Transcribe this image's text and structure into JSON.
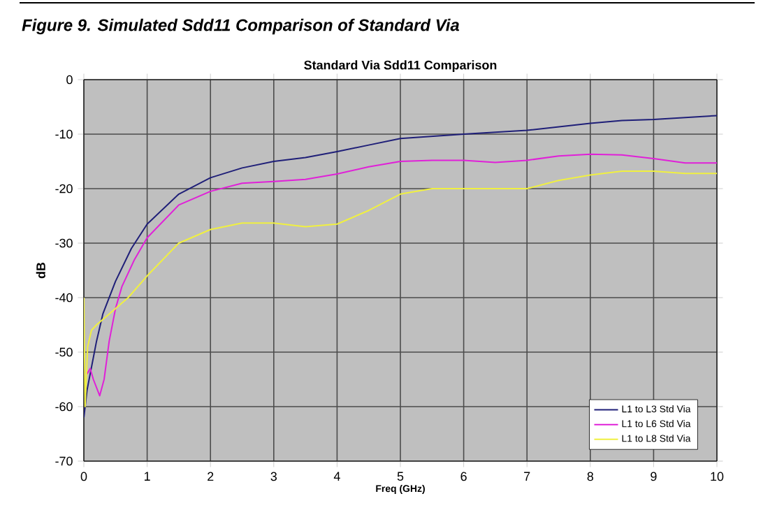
{
  "chart_data": {
    "type": "line",
    "title": "Figure 9. Simulated Sdd11 Comparison of Standard Via",
    "subtitle": "Standard Via Sdd11 Comparison",
    "xlabel": "Freq (GHz)",
    "ylabel": "dB",
    "xlim": [
      0,
      10
    ],
    "ylim": [
      -70,
      0
    ],
    "xticks": [
      0,
      1,
      2,
      3,
      4,
      5,
      6,
      7,
      8,
      9,
      10
    ],
    "yticks": [
      -70,
      -60,
      -50,
      -40,
      -30,
      -20,
      -10,
      0
    ],
    "grid": true,
    "legend": "bottom right",
    "marker": "none",
    "line_style": "solid",
    "series": [
      {
        "name": "L1 to L3 Std Via",
        "color": "#1f1f78",
        "x": [
          0,
          0.05,
          0.2,
          0.3,
          0.5,
          0.75,
          1,
          1.5,
          2,
          2.5,
          3,
          3.5,
          4,
          4.5,
          5,
          6,
          7,
          8,
          8.5,
          9,
          10
        ],
        "values": [
          -62,
          -57,
          -48,
          -43,
          -37,
          -31,
          -26.5,
          -21,
          -18,
          -16.2,
          -15,
          -14.3,
          -13.2,
          -12,
          -10.8,
          -10,
          -9.3,
          -8,
          -7.5,
          -7.3,
          -6.6
        ]
      },
      {
        "name": "L1 to L6 Std Via",
        "color": "#e020d8",
        "x": [
          0.05,
          0.1,
          0.15,
          0.25,
          0.32,
          0.4,
          0.5,
          0.6,
          0.8,
          1,
          1.5,
          2,
          2.5,
          3,
          3.5,
          4,
          4.5,
          5,
          5.5,
          6,
          6.5,
          7,
          7.5,
          8,
          8.5,
          9,
          9.5,
          10
        ],
        "values": [
          -54,
          -53,
          -55,
          -58,
          -55,
          -48,
          -42,
          -38,
          -33,
          -29,
          -23,
          -20.5,
          -19,
          -18.7,
          -18.3,
          -17.3,
          -16,
          -15,
          -14.8,
          -14.8,
          -15.2,
          -14.8,
          -14,
          -13.7,
          -13.8,
          -14.5,
          -15.3,
          -15.3
        ]
      },
      {
        "name": "L1 to L8 Std Via",
        "color": "#f0f040",
        "x": [
          0,
          0.02,
          0.06,
          0.12,
          0.2,
          0.4,
          0.7,
          1,
          1.5,
          2,
          2.5,
          3,
          3.5,
          4,
          4.5,
          5,
          5.5,
          6,
          7,
          7.5,
          8,
          8.5,
          9,
          9.5,
          10
        ],
        "values": [
          -40,
          -60,
          -49,
          -46,
          -45,
          -43,
          -40,
          -36,
          -30,
          -27.5,
          -26.3,
          -26.3,
          -27,
          -26.5,
          -24,
          -21,
          -20,
          -20,
          -20,
          -18.5,
          -17.5,
          -16.8,
          -16.8,
          -17.2,
          -17.2
        ]
      }
    ]
  }
}
